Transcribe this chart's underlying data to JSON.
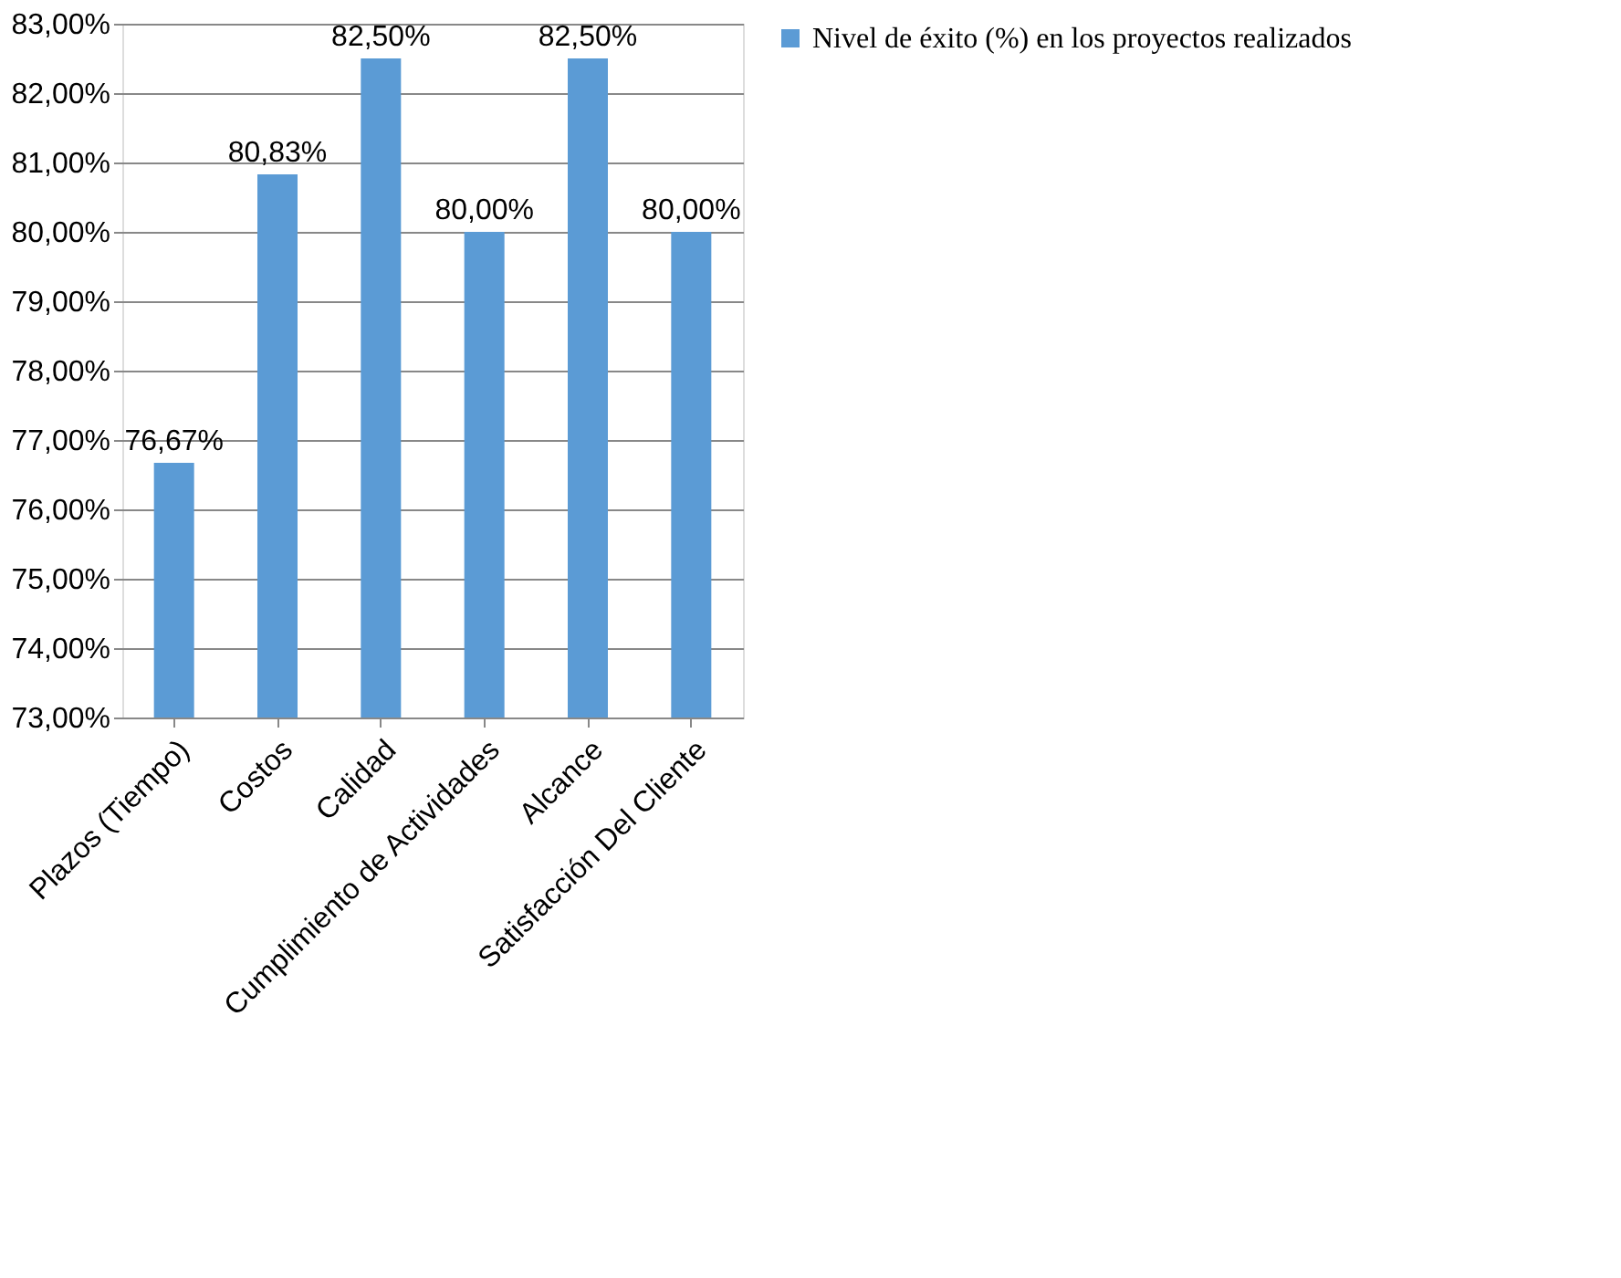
{
  "chart_data": {
    "type": "bar",
    "categories": [
      "Plazos (Tiempo)",
      "Costos",
      "Calidad",
      "Cumplimiento de Actividades",
      "Alcance",
      "Satisfacción Del Cliente"
    ],
    "series": [
      {
        "name": "Nivel de éxito (%) en los proyectos realizados",
        "color": "#5b9bd5",
        "values": [
          76.67,
          80.83,
          82.5,
          80.0,
          82.5,
          80.0
        ],
        "value_labels": [
          "76,67%",
          "80,83%",
          "82,50%",
          "80,00%",
          "82,50%",
          "80,00%"
        ]
      }
    ],
    "ylim": [
      73,
      83
    ],
    "yticks": [
      {
        "value": 73,
        "label": "73,00%"
      },
      {
        "value": 74,
        "label": "74,00%"
      },
      {
        "value": 75,
        "label": "75,00%"
      },
      {
        "value": 76,
        "label": "76,00%"
      },
      {
        "value": 77,
        "label": "77,00%"
      },
      {
        "value": 78,
        "label": "78,00%"
      },
      {
        "value": 79,
        "label": "79,00%"
      },
      {
        "value": 80,
        "label": "80,00%"
      },
      {
        "value": 81,
        "label": "81,00%"
      },
      {
        "value": 82,
        "label": "82,00%"
      },
      {
        "value": 83,
        "label": "83,00%"
      }
    ],
    "grid": "y",
    "legend": "right"
  }
}
